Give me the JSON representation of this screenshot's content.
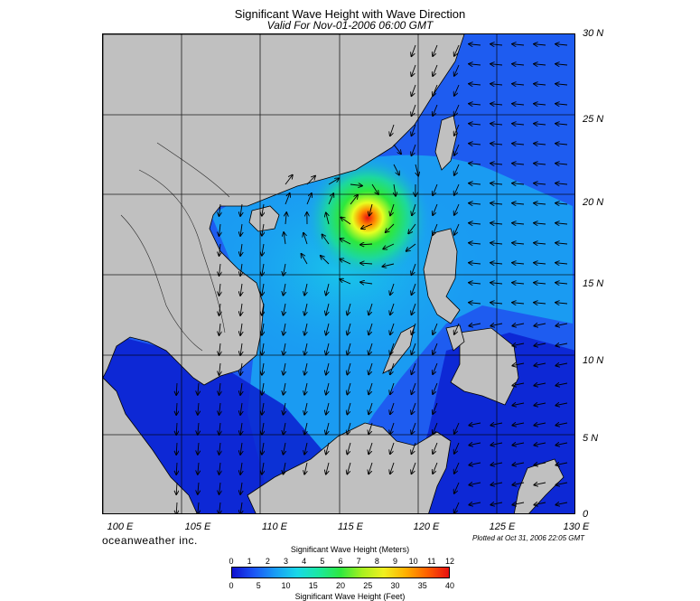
{
  "title": "Significant Wave Height with Wave Direction",
  "subtitle": "Valid For Nov-01-2006 06:00 GMT",
  "map": {
    "lon_range": [
      100,
      130
    ],
    "lat_range": [
      0,
      30
    ],
    "lon_labels": [
      "100 E",
      "105 E",
      "110 E",
      "115 E",
      "120 E",
      "125 E",
      "130 E"
    ],
    "lat_labels": [
      "30 N",
      "25 N",
      "20 N",
      "15 N",
      "10 N",
      "5 N",
      "0"
    ],
    "grid_step_deg": 5,
    "storm_center": {
      "lon": 116,
      "lat": 19.3
    },
    "colors": {
      "land": "#c0c0c0",
      "deep_blue": "#0a1fd0",
      "blue": "#1e5cf0",
      "light_blue": "#19a2f2",
      "cyan": "#1cd7d7",
      "green": "#2ee83c",
      "yellow": "#e8ff20",
      "orange": "#ff8a00",
      "red": "#e81010"
    }
  },
  "brand": "oceanweather inc.",
  "plotted_text": "Plotted at Oct 31, 2006 22:05 GMT",
  "colorbar": {
    "title_meters": "Significant Wave Height (Meters)",
    "title_feet": "Significant Wave Height (Feet)",
    "meters_ticks": [
      "0",
      "1",
      "2",
      "3",
      "4",
      "5",
      "6",
      "7",
      "8",
      "9",
      "10",
      "11",
      "12"
    ],
    "feet_ticks": [
      "0",
      "5",
      "10",
      "15",
      "20",
      "25",
      "30",
      "35",
      "40"
    ],
    "gradient": [
      "#1010d0",
      "#1a55f5",
      "#199df5",
      "#19d8e8",
      "#1ae8a0",
      "#2ee840",
      "#a8f020",
      "#f0f020",
      "#ffb000",
      "#ff6000",
      "#e81010"
    ]
  }
}
